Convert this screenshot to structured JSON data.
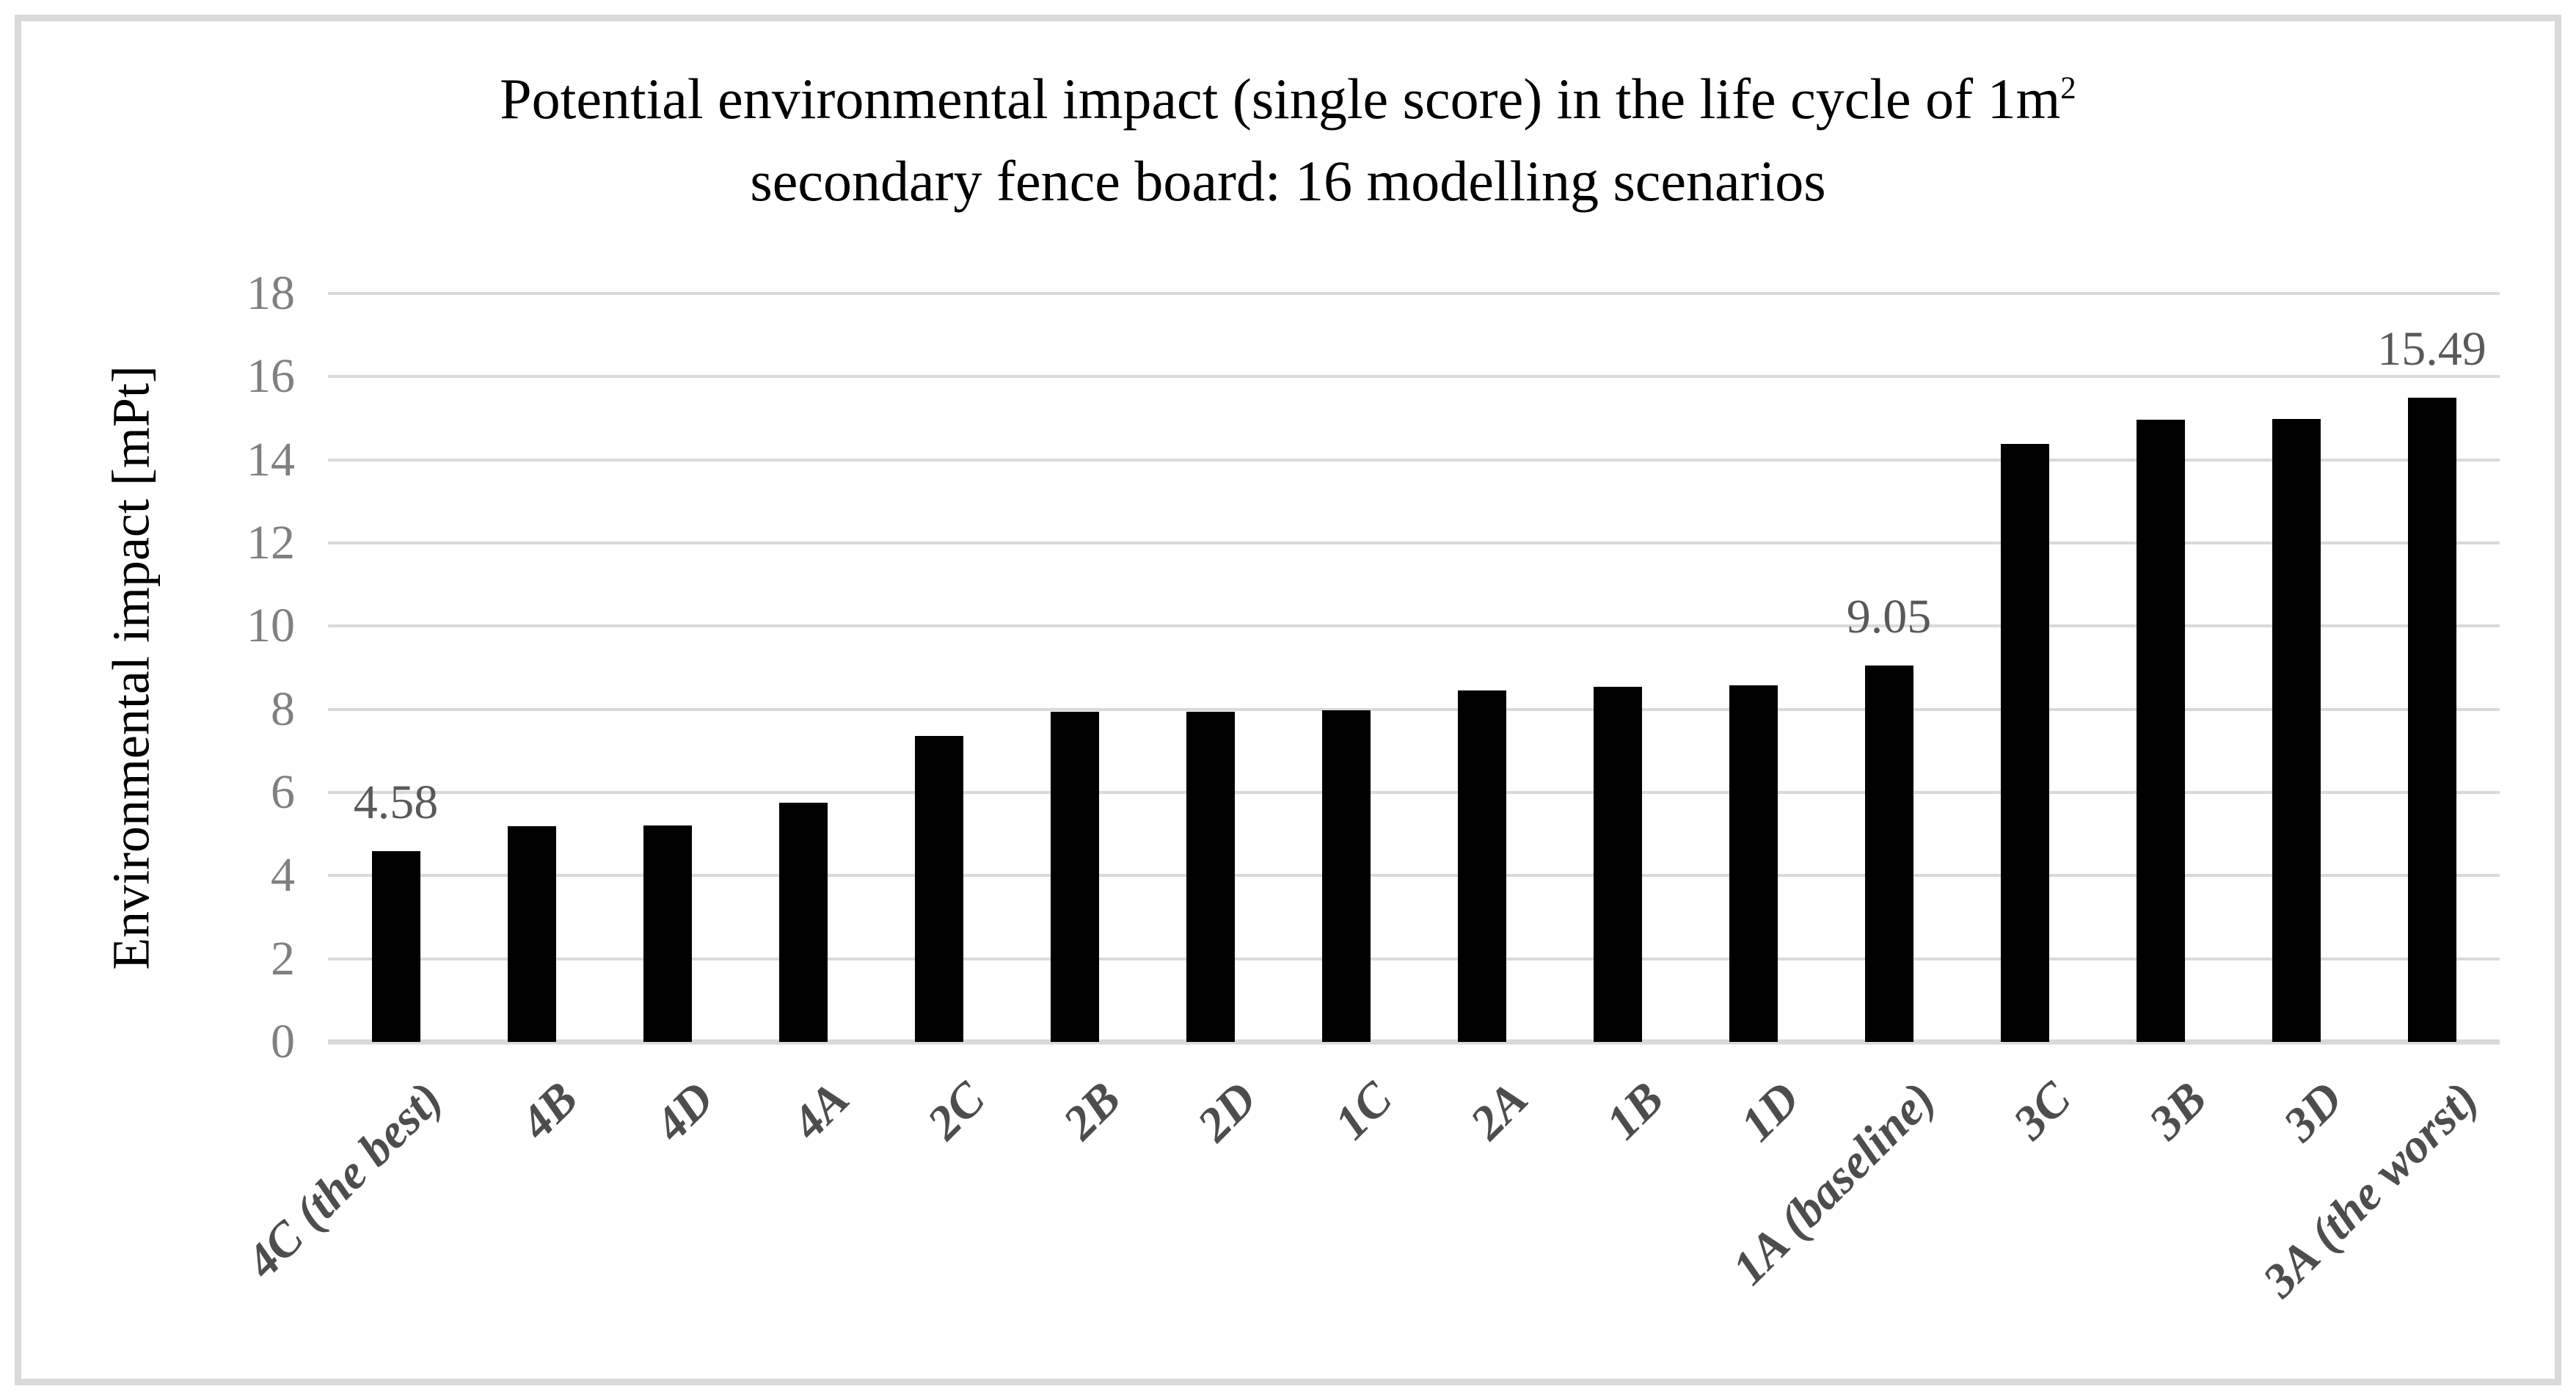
{
  "chart_data": {
    "type": "bar",
    "title_line1": "Potential environmental impact (single score) in the life cycle of 1m",
    "title_line1_sup": "2",
    "title_line2": "secondary fence board: 16 modelling scenarios",
    "title_full": "Potential environmental impact (single score) in the life cycle of 1m² secondary fence board: 16 modelling scenarios",
    "ylabel": "Environmental impact [mPt]",
    "xlabel": "",
    "categories": [
      "4C (the best)",
      "4B",
      "4D",
      "4A",
      "2C",
      "2B",
      "2D",
      "1C",
      "2A",
      "1B",
      "1D",
      "1A (baseline)",
      "3C",
      "3B",
      "3D",
      "3A (the worst)"
    ],
    "values": [
      4.58,
      5.19,
      5.21,
      5.76,
      7.36,
      7.94,
      7.95,
      7.97,
      8.45,
      8.54,
      8.57,
      9.05,
      14.38,
      14.97,
      14.98,
      15.49
    ],
    "data_labels": [
      {
        "index": 0,
        "text": "4.58"
      },
      {
        "index": 11,
        "text": "9.05"
      },
      {
        "index": 15,
        "text": "15.49"
      }
    ],
    "yticks": [
      0,
      2,
      4,
      6,
      8,
      10,
      12,
      14,
      16,
      18
    ],
    "ylim": [
      0,
      18
    ],
    "grid": "horizontal",
    "legend": "none",
    "bar_series_name": "Environmental impact [mPt]",
    "colors": {
      "bar": "#000000",
      "gridline": "#d9d9d9",
      "frame_border": "#d9d9d9",
      "tick_label": "#808080",
      "data_label": "#595959",
      "category_label": "#4d4d4d",
      "title": "#000000",
      "axis_title": "#000000"
    }
  }
}
